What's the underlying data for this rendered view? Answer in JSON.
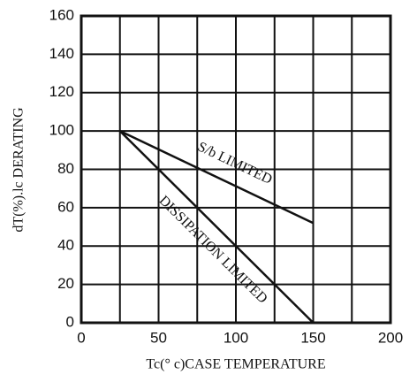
{
  "chart_data": {
    "type": "line",
    "x_label": "Tc(° c)CASE TEMPERATURE",
    "y_label": "dT(%).lc DERATING",
    "x": [
      25,
      150
    ],
    "series": [
      {
        "name": "S/b LIMITED",
        "color": "#111111",
        "values": [
          100,
          52
        ]
      },
      {
        "name": "DISSIPATION LIMITED",
        "color": "#111111",
        "values": [
          100,
          0
        ]
      }
    ],
    "xlim": [
      0,
      200
    ],
    "xticks": [
      0,
      50,
      100,
      150,
      200
    ],
    "xminorticks": [
      25,
      75,
      125,
      175
    ],
    "ylim": [
      0,
      160
    ],
    "yticks": [
      0,
      20,
      40,
      60,
      80,
      100,
      120,
      140,
      160
    ],
    "grid": true
  }
}
